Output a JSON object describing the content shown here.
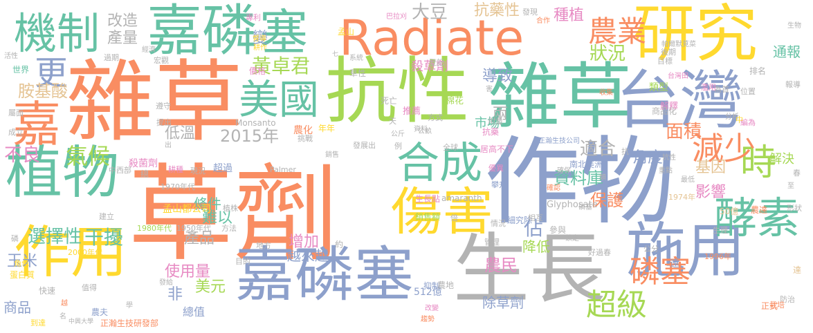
{
  "colors": {
    "orange": "#f98d62",
    "teal": "#66c2a5",
    "blue": "#8da0cb",
    "pink": "#e78ac3",
    "green": "#a6d854",
    "yellow": "#ffd92f",
    "tan": "#e5c494",
    "gray": "#b3b3b3"
  },
  "words": [
    {
      "text": "草劑",
      "color": "orange"
    },
    {
      "text": "雜草",
      "color": "orange"
    },
    {
      "text": "作物",
      "color": "blue"
    },
    {
      "text": "抗性",
      "color": "green"
    },
    {
      "text": "雜草",
      "color": "teal"
    },
    {
      "text": "Radiate",
      "color": "orange"
    },
    {
      "text": "嘉磷塞",
      "color": "blue"
    },
    {
      "text": "生長",
      "color": "gray"
    },
    {
      "text": "施用",
      "color": "blue"
    },
    {
      "text": "嘉磷",
      "color": "teal"
    },
    {
      "text": "研究",
      "color": "yellow"
    },
    {
      "text": "台灣",
      "color": "blue"
    },
    {
      "text": "植物",
      "color": "teal"
    },
    {
      "text": "作用",
      "color": "yellow"
    },
    {
      "text": "傷害",
      "color": "yellow"
    },
    {
      "text": "機制",
      "color": "teal"
    },
    {
      "text": "塞",
      "color": "teal"
    },
    {
      "text": "嘉",
      "color": "orange"
    },
    {
      "text": "合成",
      "color": "teal"
    },
    {
      "text": "美國",
      "color": "teal"
    },
    {
      "text": "酵素",
      "color": "teal"
    },
    {
      "text": "時",
      "color": "green"
    },
    {
      "text": "減少",
      "color": "orange"
    },
    {
      "text": "農業",
      "color": "orange"
    },
    {
      "text": "磷塞",
      "color": "orange"
    },
    {
      "text": "超級",
      "color": "green"
    },
    {
      "text": "更",
      "color": "blue"
    },
    {
      "text": "不良",
      "color": "pink"
    },
    {
      "text": "氣候",
      "color": "green"
    },
    {
      "text": "2015年",
      "color": "gray"
    },
    {
      "text": "選擇性",
      "color": "teal"
    },
    {
      "text": "干擾",
      "color": "teal"
    },
    {
      "text": "黃卓君",
      "color": "green"
    },
    {
      "text": "胺基酸",
      "color": "tan"
    },
    {
      "text": "大豆",
      "color": "gray"
    },
    {
      "text": "改造",
      "color": "gray"
    },
    {
      "text": "產量",
      "color": "gray"
    },
    {
      "text": "抗藥性",
      "color": "tan"
    },
    {
      "text": "種植",
      "color": "pink"
    },
    {
      "text": "狀況",
      "color": "green"
    },
    {
      "text": "通報",
      "color": "teal"
    },
    {
      "text": "導致",
      "color": "blue"
    },
    {
      "text": "兩",
      "color": "gray"
    },
    {
      "text": "變",
      "color": "blue"
    },
    {
      "text": "面積",
      "color": "orange"
    },
    {
      "text": "適合",
      "color": "gray"
    },
    {
      "text": "基因",
      "color": "tan"
    },
    {
      "text": "影響",
      "color": "pink"
    },
    {
      "text": "解決",
      "color": "green"
    },
    {
      "text": "角度",
      "color": "blue"
    },
    {
      "text": "資料庫",
      "color": "teal"
    },
    {
      "text": "保護",
      "color": "orange"
    },
    {
      "text": "佔",
      "color": "blue"
    },
    {
      "text": "降低",
      "color": "green"
    },
    {
      "text": "條件",
      "color": "teal"
    },
    {
      "text": "難以",
      "color": "teal"
    },
    {
      "text": "低溫",
      "color": "gray"
    },
    {
      "text": "產品",
      "color": "gray"
    },
    {
      "text": "使用量",
      "color": "pink"
    },
    {
      "text": "增加",
      "color": "pink"
    },
    {
      "text": "越來越",
      "color": "blue"
    },
    {
      "text": "農民",
      "color": "pink"
    },
    {
      "text": "美元",
      "color": "green"
    },
    {
      "text": "非",
      "color": "blue"
    },
    {
      "text": "總值",
      "color": "blue"
    },
    {
      "text": "玉米",
      "color": "blue"
    },
    {
      "text": "商品",
      "color": "blue"
    },
    {
      "text": "市場",
      "color": "teal"
    },
    {
      "text": "除草劑",
      "color": "blue"
    },
    {
      "text": "512億",
      "color": "blue"
    },
    {
      "text": "殺草劑",
      "color": "pink"
    },
    {
      "text": "殺菌劑",
      "color": "pink"
    },
    {
      "text": "類型",
      "color": "green"
    },
    {
      "text": "世界",
      "color": "teal"
    },
    {
      "text": "活性",
      "color": "gray"
    },
    {
      "text": "過期",
      "color": "gray"
    },
    {
      "text": "孟山",
      "color": "yellow"
    },
    {
      "text": "專利",
      "color": "pink"
    },
    {
      "text": "巴拉刈",
      "color": "pink"
    },
    {
      "text": "棉花",
      "color": "green"
    },
    {
      "text": "死亡",
      "color": "gray"
    },
    {
      "text": "農化",
      "color": "orange"
    },
    {
      "text": "年年",
      "color": "yellow"
    },
    {
      "text": "推薦",
      "color": "pink"
    },
    {
      "text": "Monsanto",
      "color": "gray"
    },
    {
      "text": "1970年代",
      "color": "gray"
    },
    {
      "text": "孟山都公司",
      "color": "yellow"
    },
    {
      "text": "1980年代",
      "color": "green"
    },
    {
      "text": "1950年代",
      "color": "gray"
    },
    {
      "text": "Palmer",
      "color": "gray"
    },
    {
      "text": "amaranth",
      "color": "gray"
    },
    {
      "text": "Glyphosate",
      "color": "gray"
    },
    {
      "text": "2000年代",
      "color": "yellow"
    },
    {
      "text": "1996年",
      "color": "orange"
    },
    {
      "text": "1974年",
      "color": "tan"
    },
    {
      "text": "正瀚生技研發部",
      "color": "orange"
    },
    {
      "text": "正瀚生技公司",
      "color": "blue"
    },
    {
      "text": "中興大學",
      "color": "gray"
    },
    {
      "text": "南北美洲",
      "color": "blue"
    },
    {
      "text": "生長點",
      "color": "pink"
    },
    {
      "text": "銷售額",
      "color": "green"
    },
    {
      "text": "細究除",
      "color": "blue"
    },
    {
      "text": "50億",
      "color": "tan"
    },
    {
      "text": "農達",
      "color": "orange"
    },
    {
      "text": "宏觀",
      "color": "gray"
    },
    {
      "text": "經濟",
      "color": "gray"
    },
    {
      "text": "督導",
      "color": "yellow"
    },
    {
      "text": "耕作",
      "color": "yellow"
    },
    {
      "text": "價格",
      "color": "pink"
    },
    {
      "text": "蛋白質",
      "color": "yellow"
    },
    {
      "text": "角色",
      "color": "yellow"
    },
    {
      "text": "到達",
      "color": "yellow"
    },
    {
      "text": "快速",
      "color": "gray"
    },
    {
      "text": "值得",
      "color": "gray"
    },
    {
      "text": "農夫",
      "color": "blue"
    },
    {
      "text": "學",
      "color": "gray"
    },
    {
      "text": "抑制",
      "color": "blue"
    },
    {
      "text": "農地",
      "color": "gray"
    },
    {
      "text": "趨勢",
      "color": "orange"
    },
    {
      "text": "好過春",
      "color": "gray"
    },
    {
      "text": "生理",
      "color": "gray"
    },
    {
      "text": "公分",
      "color": "gray"
    },
    {
      "text": "遠",
      "color": "blue"
    },
    {
      "text": "達",
      "color": "tan"
    },
    {
      "text": "正式",
      "color": "orange"
    },
    {
      "text": "防治",
      "color": "gray"
    },
    {
      "text": "栽培",
      "color": "orange"
    },
    {
      "text": "形狀",
      "color": "gray"
    },
    {
      "text": "春",
      "color": "gray"
    },
    {
      "text": "確保",
      "color": "gray"
    },
    {
      "text": "攀升",
      "color": "blue"
    },
    {
      "text": "優異",
      "color": "pink"
    },
    {
      "text": "全球",
      "color": "gray"
    },
    {
      "text": "方式",
      "color": "gray"
    },
    {
      "text": "銷售",
      "color": "gray"
    },
    {
      "text": "發展出",
      "color": "gray"
    },
    {
      "text": "抗藥",
      "color": "pink"
    },
    {
      "text": "居高不下",
      "color": "pink"
    },
    {
      "text": "用量",
      "color": "gray"
    },
    {
      "text": "解釋",
      "color": "pink"
    },
    {
      "text": "商品化",
      "color": "gray"
    },
    {
      "text": "排名",
      "color": "gray"
    },
    {
      "text": "位置",
      "color": "gray"
    },
    {
      "text": "報導",
      "color": "gray"
    },
    {
      "text": "生物",
      "color": "gray"
    },
    {
      "text": "為首",
      "color": "gray"
    },
    {
      "text": "分析",
      "color": "gray"
    },
    {
      "text": "編為",
      "color": "pink"
    },
    {
      "text": "台灣田",
      "color": "pink"
    },
    {
      "text": "濫用",
      "color": "pink"
    },
    {
      "text": "目標",
      "color": "gray"
    },
    {
      "text": "後期",
      "color": "gray"
    },
    {
      "text": "系統",
      "color": "gray"
    },
    {
      "text": "登記",
      "color": "gray"
    },
    {
      "text": "發現",
      "color": "gray"
    },
    {
      "text": "合作",
      "color": "orange"
    },
    {
      "text": "帕爾默莧菜",
      "color": "gray"
    },
    {
      "text": "收集",
      "color": "orange"
    },
    {
      "text": "屬面",
      "color": "gray"
    },
    {
      "text": "成立",
      "color": "gray"
    },
    {
      "text": "總",
      "color": "gray"
    },
    {
      "text": "中西部",
      "color": "gray"
    },
    {
      "text": "耕種",
      "color": "pink"
    },
    {
      "text": "現況",
      "color": "gray"
    },
    {
      "text": "超過",
      "color": "blue"
    },
    {
      "text": "植株",
      "color": "gray"
    },
    {
      "text": "建立",
      "color": "gray"
    },
    {
      "text": "方法",
      "color": "gray"
    },
    {
      "text": "地方",
      "color": "gray"
    },
    {
      "text": "目的",
      "color": "gray"
    },
    {
      "text": "約",
      "color": "gray"
    },
    {
      "text": "管理",
      "color": "gray"
    },
    {
      "text": "參與",
      "color": "gray"
    },
    {
      "text": "鎖定",
      "color": "gray"
    },
    {
      "text": "情況",
      "color": "gray"
    },
    {
      "text": "相互",
      "color": "gray"
    },
    {
      "text": "確認",
      "color": "orange"
    },
    {
      "text": "倍",
      "color": "gray"
    },
    {
      "text": "改變",
      "color": "pink"
    },
    {
      "text": "發給",
      "color": "gray"
    },
    {
      "text": "磷",
      "color": "gray"
    },
    {
      "text": "越",
      "color": "orange"
    },
    {
      "text": "名",
      "color": "gray"
    },
    {
      "text": "遵守",
      "color": "gray"
    },
    {
      "text": "提出",
      "color": "gray"
    },
    {
      "text": "天",
      "color": "gray"
    },
    {
      "text": "例",
      "color": "gray"
    },
    {
      "text": "公斤",
      "color": "gray"
    },
    {
      "text": "挑戰",
      "color": "gray"
    },
    {
      "text": "七",
      "color": "gray"
    },
    {
      "text": "中",
      "color": "yellow"
    },
    {
      "text": "抗",
      "color": "gray"
    },
    {
      "text": "抗性",
      "color": "gray"
    },
    {
      "text": "害",
      "color": "gray"
    },
    {
      "text": "草性",
      "color": "gray"
    },
    {
      "text": "資料",
      "color": "gray"
    },
    {
      "text": "公畝",
      "color": "gray"
    },
    {
      "text": "重點",
      "color": "gray"
    },
    {
      "text": "最低",
      "color": "gray"
    },
    {
      "text": "類",
      "color": "gray"
    },
    {
      "text": "出",
      "color": "gray"
    },
    {
      "text": "至",
      "color": "gray"
    },
    {
      "text": "磷塞",
      "color": "gray"
    }
  ]
}
